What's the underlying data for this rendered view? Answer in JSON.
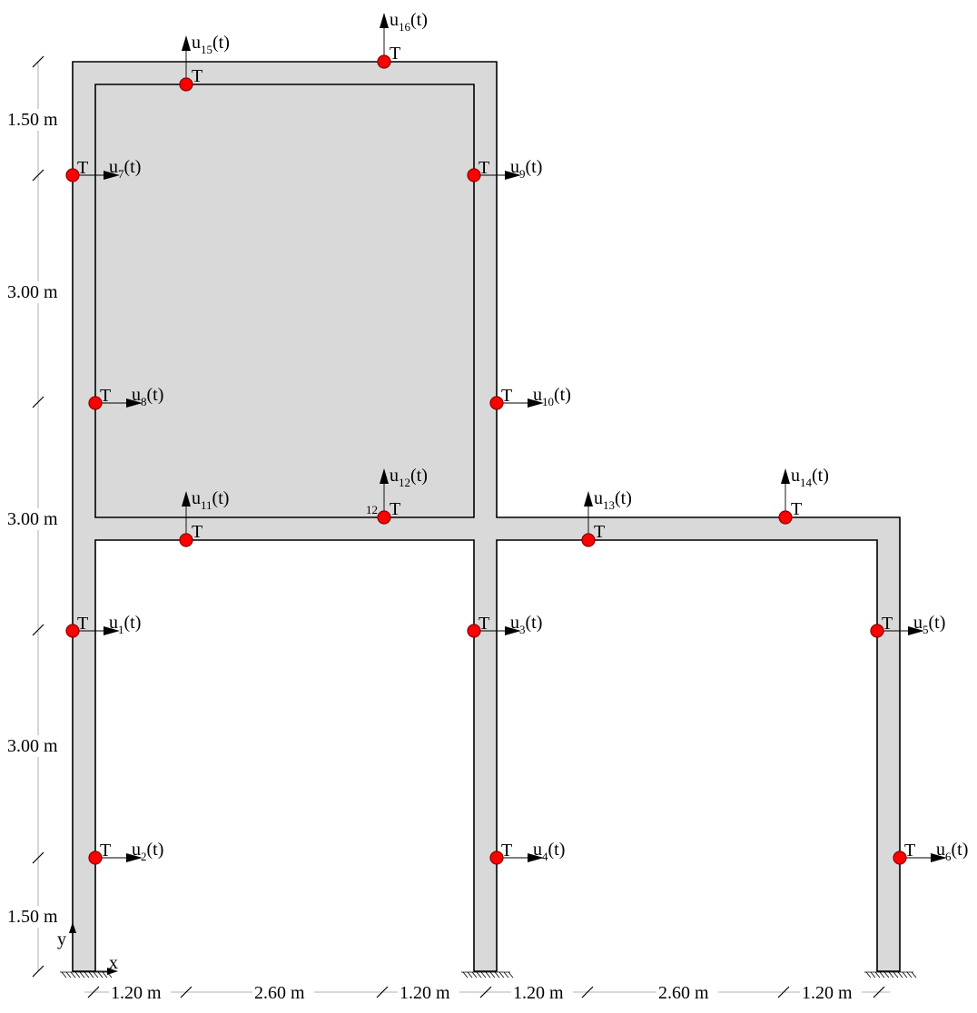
{
  "sensor_marker": "T",
  "sensor_color": "#ff0000",
  "member_fill": "#d9d9d9",
  "node_number": "12",
  "axes": {
    "x_label": "x",
    "y_label": "y"
  },
  "dimensions": {
    "vertical": [
      "1.50 m",
      "3.00 m",
      "3.00 m",
      "3.00 m",
      "1.50 m"
    ],
    "horizontal": [
      "1.20 m",
      "2.60 m",
      "1.20 m",
      "1.20 m",
      "2.60 m",
      "1.20 m"
    ]
  },
  "dofs": [
    {
      "base": "u",
      "index": "1",
      "suffix": "(t)",
      "direction": "horizontal"
    },
    {
      "base": "u",
      "index": "2",
      "suffix": "(t)",
      "direction": "horizontal"
    },
    {
      "base": "u",
      "index": "3",
      "suffix": "(t)",
      "direction": "horizontal"
    },
    {
      "base": "u",
      "index": "4",
      "suffix": "(t)",
      "direction": "horizontal"
    },
    {
      "base": "u",
      "index": "5",
      "suffix": "(t)",
      "direction": "horizontal"
    },
    {
      "base": "u",
      "index": "6",
      "suffix": "(t)",
      "direction": "horizontal"
    },
    {
      "base": "u",
      "index": "7",
      "suffix": "(t)",
      "direction": "horizontal"
    },
    {
      "base": "u",
      "index": "8",
      "suffix": "(t)",
      "direction": "horizontal"
    },
    {
      "base": "u",
      "index": "9",
      "suffix": "(t)",
      "direction": "horizontal"
    },
    {
      "base": "u",
      "index": "10",
      "suffix": "(t)",
      "direction": "horizontal"
    },
    {
      "base": "u",
      "index": "11",
      "suffix": "(t)",
      "direction": "vertical"
    },
    {
      "base": "u",
      "index": "12",
      "suffix": "(t)",
      "direction": "vertical"
    },
    {
      "base": "u",
      "index": "13",
      "suffix": "(t)",
      "direction": "vertical"
    },
    {
      "base": "u",
      "index": "14",
      "suffix": "(t)",
      "direction": "vertical"
    },
    {
      "base": "u",
      "index": "15",
      "suffix": "(t)",
      "direction": "vertical"
    },
    {
      "base": "u",
      "index": "16",
      "suffix": "(t)",
      "direction": "vertical"
    }
  ]
}
